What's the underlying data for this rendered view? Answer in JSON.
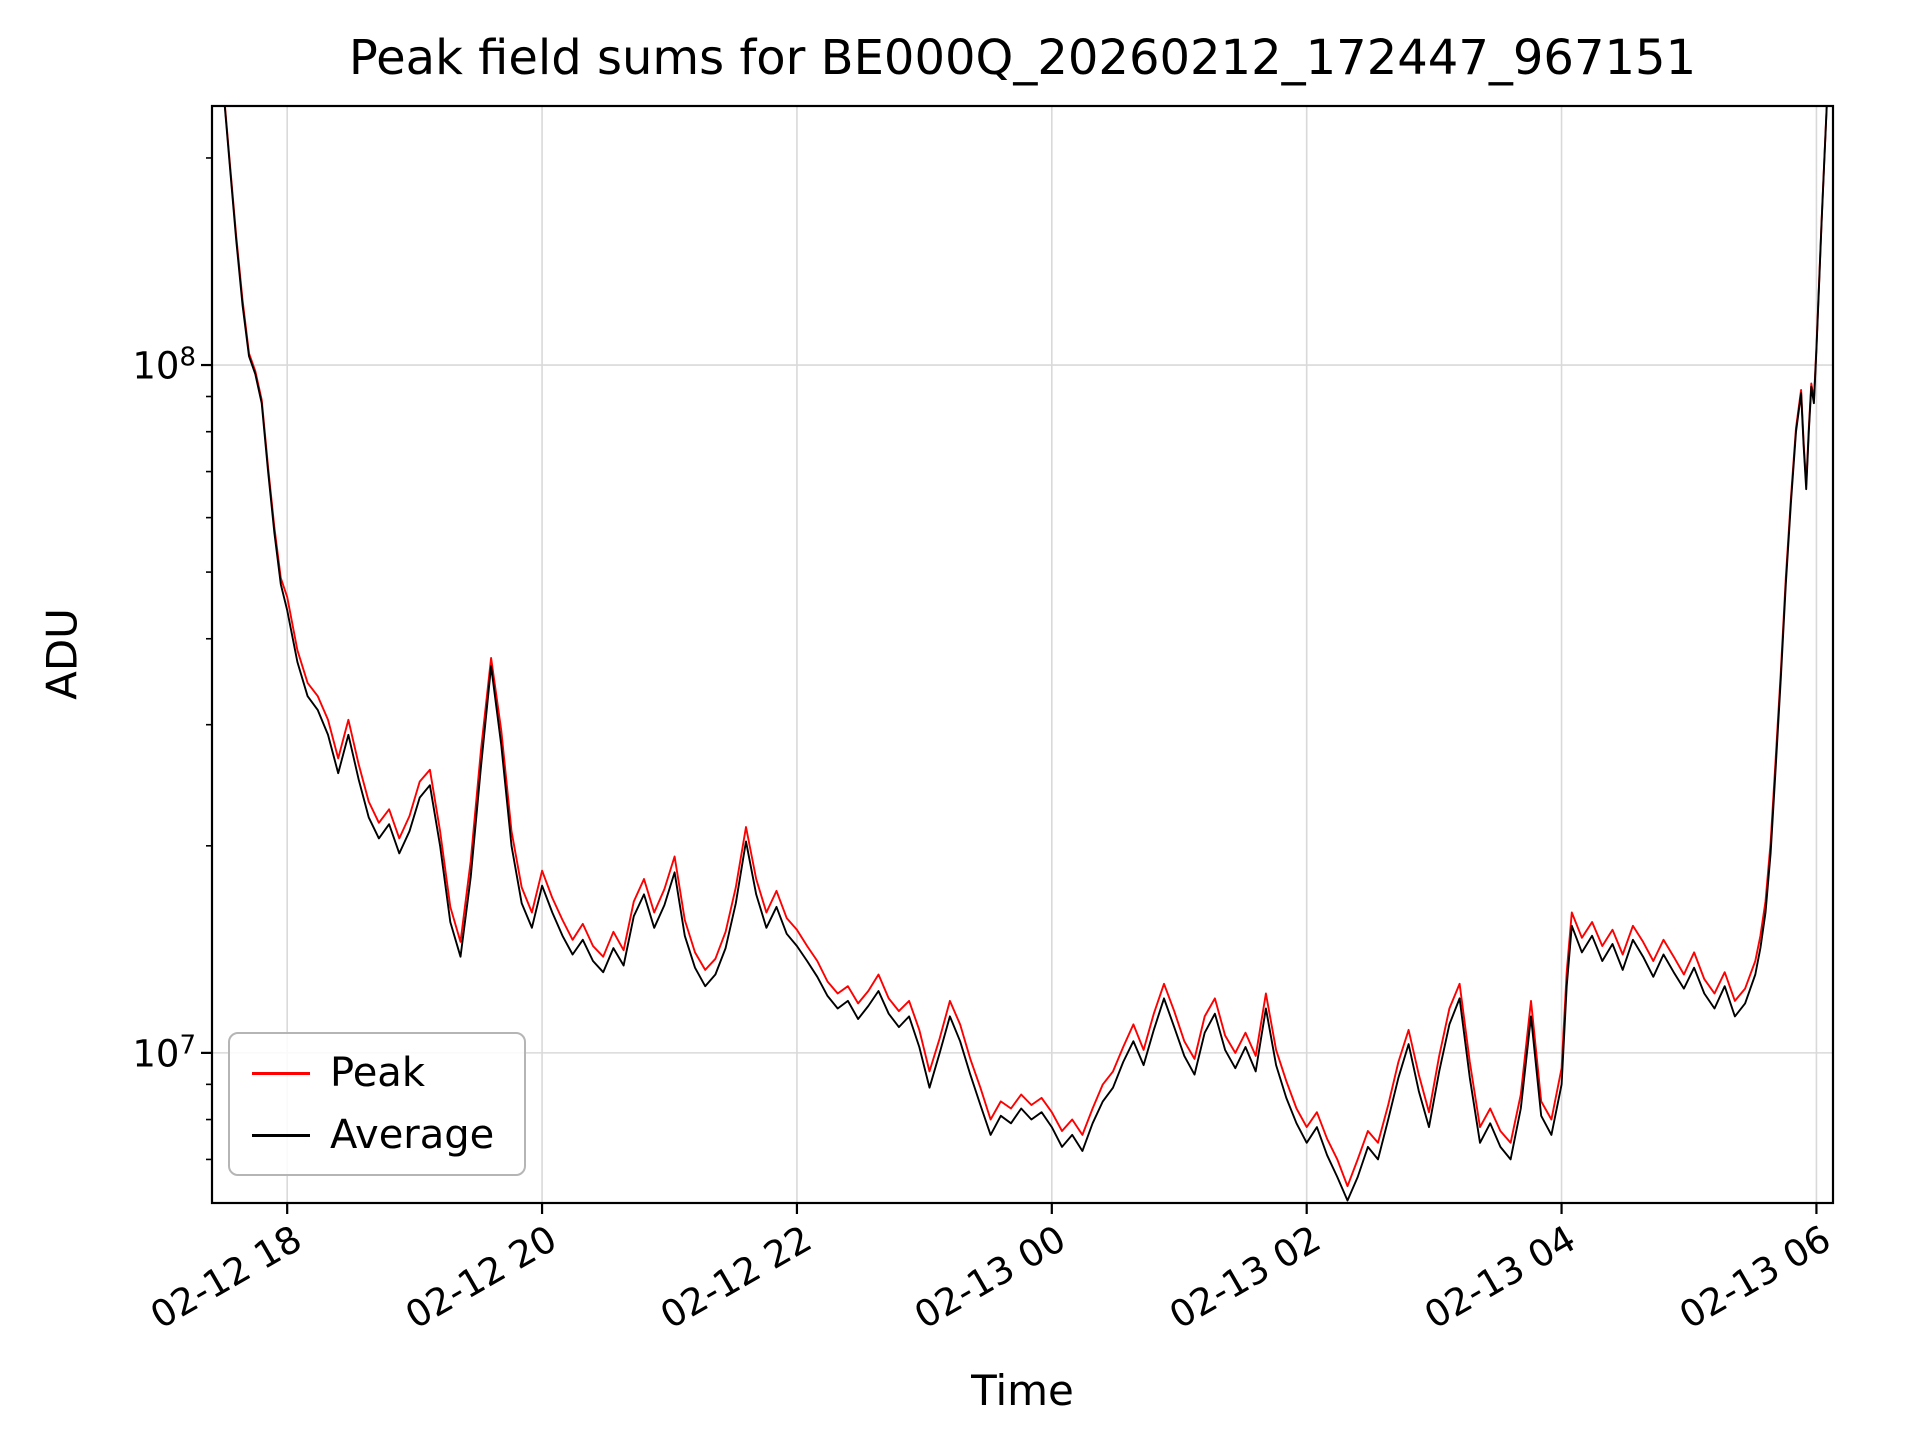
{
  "figure": {
    "title": "Peak field sums for BE000Q_20260212_172447_967151"
  },
  "chart_data": {
    "type": "line",
    "title": "Peak field sums for BE000Q_20260212_172447_967151",
    "xlabel": "Time",
    "ylabel": "ADU",
    "yscale": "log",
    "grid": true,
    "legend_position": "lower left",
    "colors": {
      "peak": "#ff0000",
      "average": "#000000",
      "grid": "#d9d9d9",
      "spine": "#000000"
    },
    "xlim_hours": [
      17.41,
      30.13
    ],
    "ylim": [
      6050000,
      238000000
    ],
    "x_ticks": [
      {
        "hours": 18,
        "label": "02-12 18"
      },
      {
        "hours": 20,
        "label": "02-12 20"
      },
      {
        "hours": 22,
        "label": "02-12 22"
      },
      {
        "hours": 24,
        "label": "02-13 00"
      },
      {
        "hours": 26,
        "label": "02-13 02"
      },
      {
        "hours": 28,
        "label": "02-13 04"
      },
      {
        "hours": 30,
        "label": "02-13 06"
      }
    ],
    "y_ticks": [
      {
        "value": 10000000,
        "base": "10",
        "exponent": "7"
      },
      {
        "value": 100000000,
        "base": "10",
        "exponent": "8"
      }
    ],
    "unit_multiplier": 1000000,
    "x_hours": [
      17.45,
      17.5,
      17.55,
      17.6,
      17.65,
      17.7,
      17.75,
      17.8,
      17.85,
      17.9,
      17.95,
      18.0,
      18.08,
      18.16,
      18.24,
      18.32,
      18.4,
      18.48,
      18.56,
      18.64,
      18.72,
      18.8,
      18.88,
      18.96,
      19.04,
      19.12,
      19.2,
      19.28,
      19.36,
      19.44,
      19.52,
      19.6,
      19.68,
      19.76,
      19.84,
      19.92,
      20.0,
      20.08,
      20.16,
      20.24,
      20.32,
      20.4,
      20.48,
      20.56,
      20.64,
      20.72,
      20.8,
      20.88,
      20.96,
      21.04,
      21.12,
      21.2,
      21.28,
      21.36,
      21.44,
      21.52,
      21.6,
      21.68,
      21.76,
      21.84,
      21.92,
      22.0,
      22.08,
      22.16,
      22.24,
      22.32,
      22.4,
      22.48,
      22.56,
      22.64,
      22.72,
      22.8,
      22.88,
      22.96,
      23.04,
      23.12,
      23.2,
      23.28,
      23.36,
      23.44,
      23.52,
      23.6,
      23.68,
      23.76,
      23.84,
      23.92,
      24.0,
      24.08,
      24.16,
      24.24,
      24.32,
      24.4,
      24.48,
      24.56,
      24.64,
      24.72,
      24.8,
      24.88,
      24.96,
      25.04,
      25.12,
      25.2,
      25.28,
      25.36,
      25.44,
      25.52,
      25.6,
      25.68,
      25.76,
      25.84,
      25.92,
      26.0,
      26.08,
      26.16,
      26.24,
      26.32,
      26.4,
      26.48,
      26.56,
      26.64,
      26.72,
      26.8,
      26.88,
      26.96,
      27.04,
      27.12,
      27.2,
      27.28,
      27.36,
      27.44,
      27.52,
      27.6,
      27.68,
      27.76,
      27.84,
      27.92,
      28.0,
      28.04,
      28.08,
      28.16,
      28.24,
      28.32,
      28.4,
      28.48,
      28.56,
      28.64,
      28.72,
      28.8,
      28.88,
      28.96,
      29.04,
      29.12,
      29.2,
      29.28,
      29.36,
      29.44,
      29.52,
      29.56,
      29.6,
      29.64,
      29.68,
      29.72,
      29.76,
      29.8,
      29.84,
      29.88,
      29.9,
      29.92,
      29.94,
      29.96,
      29.98,
      30.0,
      30.02,
      30.04,
      30.06,
      30.08,
      30.1
    ],
    "series": [
      {
        "name": "Peak",
        "color": "#ff0000",
        "values_millions": [
          312,
          252,
          197,
          154,
          124,
          104,
          98,
          89,
          71,
          58,
          49,
          46,
          38.5,
          34.5,
          33,
          30.5,
          26.8,
          30.5,
          26.3,
          23.2,
          21.6,
          22.6,
          20.5,
          22.1,
          24.8,
          25.8,
          21,
          16.3,
          14.5,
          19,
          27.5,
          37.5,
          29.4,
          21,
          17.4,
          16,
          18.4,
          16.8,
          15.6,
          14.6,
          15.4,
          14.3,
          13.8,
          15,
          14.1,
          16.6,
          17.9,
          16,
          17.3,
          19.3,
          15.6,
          14,
          13.2,
          13.7,
          15,
          17.4,
          21.3,
          17.9,
          16,
          17.2,
          15.7,
          15.1,
          14.3,
          13.6,
          12.7,
          12.2,
          12.5,
          11.8,
          12.3,
          13,
          12,
          11.5,
          11.9,
          10.8,
          9.4,
          10.5,
          11.9,
          11,
          9.8,
          8.9,
          8,
          8.5,
          8.3,
          8.7,
          8.4,
          8.6,
          8.2,
          7.7,
          8,
          7.6,
          8.3,
          9,
          9.4,
          10.2,
          11,
          10.1,
          11.4,
          12.6,
          11.5,
          10.4,
          9.8,
          11.3,
          12,
          10.6,
          10,
          10.7,
          9.9,
          12.2,
          10.1,
          9.1,
          8.3,
          7.8,
          8.2,
          7.5,
          7,
          6.4,
          7,
          7.7,
          7.4,
          8.4,
          9.7,
          10.8,
          9.3,
          8.2,
          9.9,
          11.6,
          12.6,
          9.7,
          7.8,
          8.3,
          7.7,
          7.4,
          8.7,
          11.9,
          8.5,
          8,
          9.5,
          13.1,
          16,
          14.7,
          15.5,
          14.3,
          15.1,
          13.9,
          15.3,
          14.5,
          13.6,
          14.6,
          13.8,
          13,
          14,
          12.8,
          12.2,
          13.1,
          11.9,
          12.4,
          13.6,
          14.8,
          16.6,
          20.2,
          26.8,
          35.8,
          49,
          64,
          81,
          92,
          77,
          67,
          81,
          94,
          89,
          106,
          131,
          161,
          196,
          236,
          291
        ]
      },
      {
        "name": "Average",
        "color": "#000000",
        "values_millions": [
          310,
          250,
          195,
          152,
          122,
          103,
          97,
          88,
          70,
          57,
          48,
          44,
          37,
          33,
          31.5,
          29,
          25.5,
          29,
          25,
          22,
          20.5,
          21.5,
          19.5,
          21,
          23.5,
          24.5,
          20,
          15.5,
          13.8,
          18,
          26,
          36.5,
          28,
          20,
          16.5,
          15.2,
          17.5,
          16,
          14.8,
          13.9,
          14.6,
          13.6,
          13.1,
          14.2,
          13.4,
          15.8,
          17,
          15.2,
          16.4,
          18.3,
          14.8,
          13.3,
          12.5,
          13,
          14.2,
          16.5,
          20.3,
          17,
          15.2,
          16.3,
          14.9,
          14.3,
          13.6,
          12.9,
          12.1,
          11.6,
          11.9,
          11.2,
          11.7,
          12.3,
          11.4,
          10.9,
          11.3,
          10.2,
          8.9,
          10,
          11.3,
          10.4,
          9.3,
          8.4,
          7.6,
          8.1,
          7.9,
          8.3,
          8,
          8.2,
          7.8,
          7.3,
          7.6,
          7.2,
          7.9,
          8.5,
          8.9,
          9.7,
          10.4,
          9.6,
          10.8,
          12,
          10.9,
          9.9,
          9.3,
          10.7,
          11.4,
          10.1,
          9.5,
          10.2,
          9.4,
          11.6,
          9.6,
          8.6,
          7.9,
          7.4,
          7.8,
          7.1,
          6.6,
          6.1,
          6.6,
          7.3,
          7,
          8,
          9.2,
          10.3,
          8.8,
          7.8,
          9.4,
          11,
          12,
          9.2,
          7.4,
          7.9,
          7.3,
          7,
          8.3,
          11.3,
          8.1,
          7.6,
          9,
          12.5,
          15.3,
          14,
          14.8,
          13.6,
          14.4,
          13.2,
          14.6,
          13.8,
          12.9,
          13.9,
          13.1,
          12.4,
          13.3,
          12.2,
          11.6,
          12.5,
          11.3,
          11.8,
          13,
          14.2,
          16,
          19.5,
          26,
          35,
          48,
          63,
          80,
          91,
          76,
          66,
          80,
          93,
          88,
          105,
          130,
          160,
          195,
          235,
          290
        ]
      }
    ]
  }
}
